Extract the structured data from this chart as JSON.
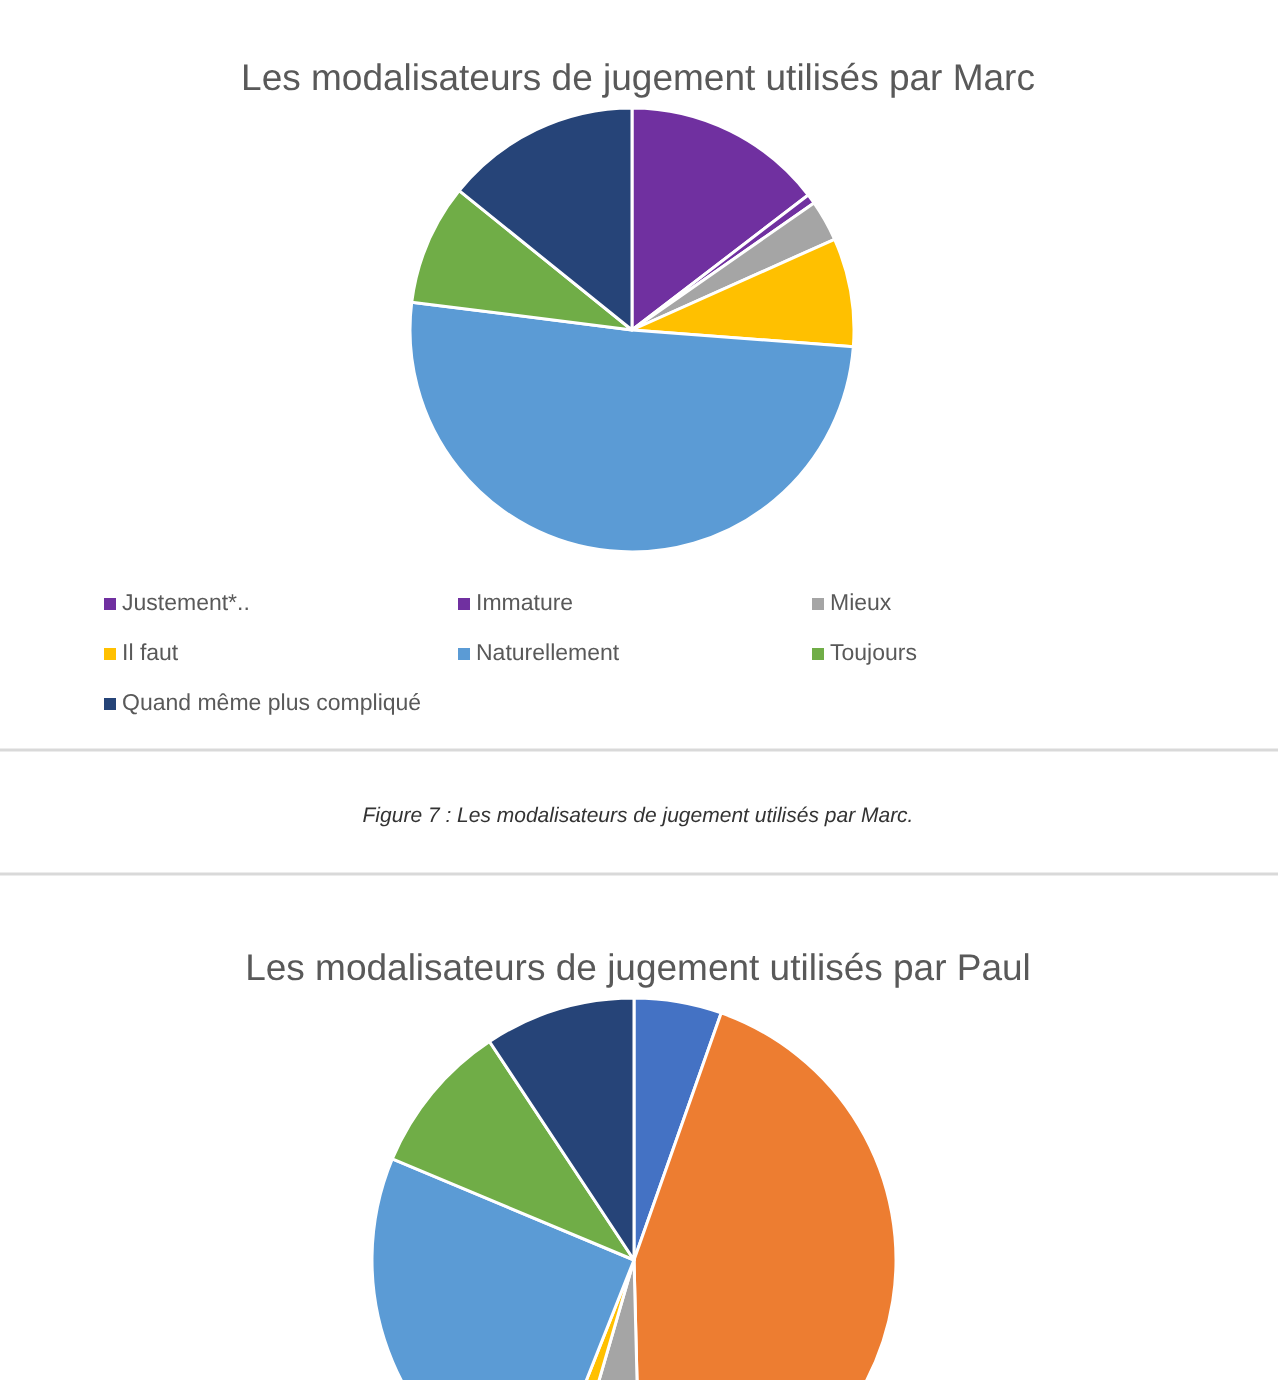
{
  "chart_data": [
    {
      "type": "pie",
      "title": "Les modalisateurs de jugement utilisés par Marc",
      "categories": [
        "Justement*..",
        "Immature",
        "Mieux",
        "Il faut",
        "Naturellement",
        "Toujours",
        "Quand même plus compliqué"
      ],
      "values": [
        14.6,
        0.7,
        3,
        7.9,
        50.8,
        8.8,
        14.2
      ],
      "colors": [
        "#7030a0",
        "#7030a0",
        "#a5a5a5",
        "#ffc000",
        "#5b9bd5",
        "#70ad47",
        "#264478"
      ],
      "legend": "bottom",
      "annotations": [
        "Figure 7 : Les modalisateurs de jugement utilisés par Marc."
      ]
    },
    {
      "type": "pie",
      "title": "Les modalisateurs de jugement utilisés par Paul",
      "categories": [
        null,
        null,
        null,
        null,
        null,
        null,
        null
      ],
      "values": [
        5.4,
        44.2,
        4.9,
        1.5,
        25.3,
        9.4,
        9.3
      ],
      "colors": [
        "#4472c4",
        "#ed7d31",
        "#a5a5a5",
        "#ffc000",
        "#5b9bd5",
        "#70ad47",
        "#264478"
      ]
    }
  ]
}
